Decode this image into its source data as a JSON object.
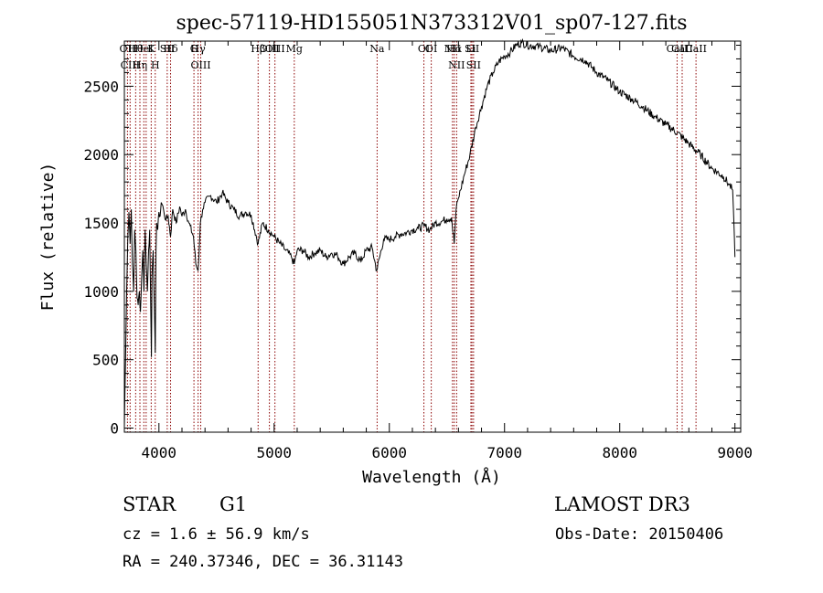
{
  "chart_data": {
    "type": "line",
    "title": "spec-57119-HD155051N373312V01_sp07-127.fits",
    "xlabel": "Wavelength (Å)",
    "ylabel": "Flux (relative)",
    "xlim": [
      3700,
      9050
    ],
    "ylim": [
      -30,
      2830
    ],
    "x_ticks": [
      4000,
      5000,
      6000,
      7000,
      8000,
      9000
    ],
    "y_ticks": [
      0,
      500,
      1000,
      1500,
      2000,
      2500
    ],
    "grid": false,
    "series": [
      {
        "x": [
          3700,
          3710,
          3720,
          3730,
          3740,
          3750,
          3760,
          3770,
          3780,
          3790,
          3800,
          3810,
          3820,
          3830,
          3840,
          3850,
          3860,
          3870,
          3880,
          3890,
          3900,
          3910,
          3920,
          3930,
          3935,
          3940,
          3950,
          3960,
          3968,
          3975,
          3980,
          3990,
          4000,
          4010,
          4020,
          4040,
          4060,
          4080,
          4101,
          4120,
          4150,
          4180,
          4200,
          4230,
          4260,
          4300,
          4320,
          4340,
          4360,
          4380,
          4400,
          4450,
          4500,
          4550,
          4600,
          4650,
          4700,
          4750,
          4800,
          4861,
          4900,
          4950,
          5000,
          5050,
          5100,
          5150,
          5175,
          5200,
          5250,
          5300,
          5350,
          5400,
          5450,
          5500,
          5550,
          5600,
          5650,
          5700,
          5750,
          5800,
          5850,
          5890,
          5950,
          6000,
          6050,
          6100,
          6150,
          6200,
          6250,
          6300,
          6350,
          6400,
          6450,
          6500,
          6540,
          6563,
          6580,
          6600,
          6650,
          6700,
          6750,
          6800,
          6850,
          6900,
          6950,
          7000,
          7050,
          7100,
          7150,
          7200,
          7300,
          7400,
          7500,
          7600,
          7700,
          7800,
          7900,
          8000,
          8100,
          8200,
          8300,
          8400,
          8500,
          8600,
          8700,
          8800,
          8900,
          8950,
          8980,
          9000
        ],
        "y": [
          10,
          500,
          1000,
          1400,
          1580,
          1350,
          1600,
          1200,
          1000,
          1450,
          1300,
          950,
          900,
          1000,
          850,
          1100,
          1300,
          1000,
          1450,
          1200,
          1000,
          1300,
          1450,
          800,
          520,
          1100,
          1300,
          900,
          550,
          1300,
          1500,
          1450,
          1580,
          1550,
          1650,
          1600,
          1520,
          1550,
          1400,
          1600,
          1500,
          1620,
          1550,
          1600,
          1500,
          1400,
          1200,
          1150,
          1500,
          1600,
          1650,
          1700,
          1650,
          1720,
          1650,
          1600,
          1550,
          1580,
          1560,
          1350,
          1500,
          1450,
          1400,
          1350,
          1300,
          1250,
          1200,
          1300,
          1300,
          1250,
          1280,
          1300,
          1250,
          1280,
          1260,
          1200,
          1250,
          1280,
          1220,
          1300,
          1320,
          1150,
          1380,
          1380,
          1400,
          1420,
          1430,
          1450,
          1460,
          1480,
          1450,
          1500,
          1510,
          1530,
          1540,
          1350,
          1600,
          1680,
          1850,
          2000,
          2200,
          2350,
          2500,
          2600,
          2680,
          2720,
          2750,
          2800,
          2820,
          2800,
          2790,
          2760,
          2780,
          2720,
          2690,
          2600,
          2540,
          2460,
          2410,
          2350,
          2280,
          2220,
          2160,
          2080,
          2000,
          1900,
          1840,
          1780,
          1740,
          1250
        ]
      }
    ],
    "lines": [
      {
        "x": 3727,
        "labels": [
          "OII"
        ]
      },
      {
        "x": 3750,
        "labels": [
          "CIII"
        ]
      },
      {
        "x": 3798,
        "labels": [
          "Hθ"
        ]
      },
      {
        "x": 3835,
        "labels": [
          "Hη"
        ]
      },
      {
        "x": 3869,
        "labels": [
          "HeI"
        ]
      },
      {
        "x": 3889,
        "labels": []
      },
      {
        "x": 3933,
        "labels": [
          "K"
        ]
      },
      {
        "x": 3968,
        "labels": [
          "H"
        ]
      },
      {
        "x": 4072,
        "labels": [
          "SII"
        ]
      },
      {
        "x": 4101,
        "labels": [
          "Hδ"
        ]
      },
      {
        "x": 4304,
        "labels": [
          "G"
        ]
      },
      {
        "x": 4340,
        "labels": [
          "Hγ"
        ]
      },
      {
        "x": 4363,
        "labels": [
          "OIII"
        ]
      },
      {
        "x": 4861,
        "labels": [
          "Hβ"
        ]
      },
      {
        "x": 4959,
        "labels": [
          "OIII"
        ]
      },
      {
        "x": 5007,
        "labels": [
          "OIII"
        ]
      },
      {
        "x": 5175,
        "labels": [
          "Mg"
        ]
      },
      {
        "x": 5894,
        "labels": [
          "Na"
        ]
      },
      {
        "x": 6300,
        "labels": [
          "OI"
        ]
      },
      {
        "x": 6364,
        "labels": [
          "OI"
        ]
      },
      {
        "x": 6548,
        "labels": [
          "NII"
        ]
      },
      {
        "x": 6563,
        "labels": [
          "Hα"
        ]
      },
      {
        "x": 6584,
        "labels": [
          "NII"
        ]
      },
      {
        "x": 6708,
        "labels": [
          "Li"
        ]
      },
      {
        "x": 6717,
        "labels": [
          "SII"
        ]
      },
      {
        "x": 6731,
        "labels": [
          "SII"
        ]
      },
      {
        "x": 8498,
        "labels": [
          "CaII"
        ]
      },
      {
        "x": 8542,
        "labels": [
          "CaII"
        ]
      },
      {
        "x": 8662,
        "labels": [
          "CaII"
        ]
      }
    ],
    "line_color": "#8b0000",
    "curve_color": "#000000"
  },
  "info": {
    "object_class": "STAR",
    "subclass": "G1",
    "survey": "LAMOST DR3",
    "redshift": "cz = 1.6 ± 56.9 km/s",
    "obs_date": "Obs-Date: 20150406",
    "coords": "RA = 240.37346, DEC =  36.31143"
  }
}
